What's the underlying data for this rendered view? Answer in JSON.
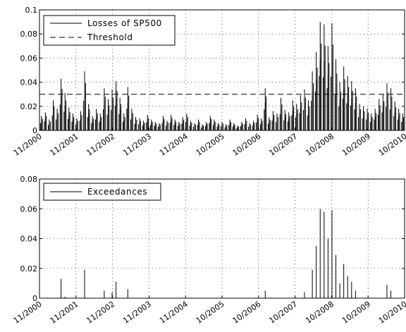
{
  "chart_data": [
    {
      "type": "bar",
      "ylim": [
        0,
        0.1
      ],
      "yticks": [
        0,
        0.02,
        0.04,
        0.06,
        0.08,
        0.1
      ],
      "ytick_labels": [
        "0",
        "0.02",
        "0.04",
        "0.06",
        "0.08",
        "0.1"
      ],
      "xtick_labels": [
        "11/2000",
        "11/2001",
        "11/2002",
        "11/2003",
        "11/2004",
        "10/2005",
        "10/2006",
        "10/2007",
        "10/2008",
        "10/2009",
        "10/2010"
      ],
      "grid": true,
      "legend_placement": "top-left",
      "series": [
        {
          "name": "Losses of SP500",
          "style": "solid",
          "color": "#000000",
          "values": [
            0.012,
            0.015,
            0.009,
            0.025,
            0.018,
            0.043,
            0.031,
            0.019,
            0.014,
            0.01,
            0.016,
            0.049,
            0.022,
            0.012,
            0.018,
            0.014,
            0.035,
            0.026,
            0.034,
            0.041,
            0.027,
            0.014,
            0.036,
            0.018,
            0.011,
            0.01,
            0.008,
            0.013,
            0.009,
            0.007,
            0.006,
            0.012,
            0.008,
            0.013,
            0.009,
            0.007,
            0.011,
            0.014,
            0.008,
            0.006,
            0.009,
            0.005,
            0.007,
            0.012,
            0.009,
            0.006,
            0.007,
            0.005,
            0.009,
            0.006,
            0.004,
            0.007,
            0.01,
            0.006,
            0.008,
            0.013,
            0.01,
            0.035,
            0.011,
            0.016,
            0.014,
            0.027,
            0.017,
            0.015,
            0.025,
            0.022,
            0.029,
            0.034,
            0.025,
            0.049,
            0.065,
            0.09,
            0.088,
            0.07,
            0.089,
            0.059,
            0.04,
            0.053,
            0.045,
            0.041,
            0.035,
            0.022,
            0.02,
            0.018,
            0.014,
            0.018,
            0.026,
            0.03,
            0.039,
            0.035,
            0.024,
            0.018,
            0.014
          ]
        },
        {
          "name": "Threshold",
          "style": "dashed",
          "color": "#000000",
          "values": [
            0.03
          ]
        }
      ]
    },
    {
      "type": "bar",
      "ylim": [
        0,
        0.08
      ],
      "yticks": [
        0,
        0.02,
        0.04,
        0.06,
        0.08
      ],
      "ytick_labels": [
        "0",
        "0.02",
        "0.04",
        "0.06",
        "0.08"
      ],
      "xtick_labels": [
        "11/2000",
        "11/2001",
        "11/2002",
        "11/2003",
        "11/2004",
        "10/2005",
        "10/2006",
        "10/2007",
        "10/2008",
        "10/2009",
        "10/2010"
      ],
      "grid": true,
      "legend_placement": "top-left",
      "series": [
        {
          "name": "Exceedances",
          "style": "solid",
          "color": "#000000",
          "values": [
            0,
            0,
            0,
            0,
            0,
            0.013,
            0.001,
            0,
            0,
            0,
            0,
            0.019,
            0,
            0,
            0,
            0,
            0.005,
            0,
            0.004,
            0.011,
            0,
            0,
            0.006,
            0,
            0,
            0,
            0,
            0,
            0,
            0,
            0,
            0,
            0,
            0,
            0,
            0,
            0,
            0,
            0,
            0,
            0,
            0,
            0,
            0,
            0,
            0,
            0,
            0,
            0,
            0,
            0,
            0,
            0,
            0,
            0,
            0,
            0,
            0.005,
            0,
            0,
            0,
            0,
            0,
            0,
            0,
            0,
            0,
            0.004,
            0,
            0.019,
            0.035,
            0.06,
            0.058,
            0.04,
            0.059,
            0.029,
            0.01,
            0.023,
            0.015,
            0.011,
            0.005,
            0,
            0,
            0,
            0,
            0,
            0,
            0,
            0.009,
            0.005,
            0,
            0,
            0
          ]
        }
      ]
    }
  ]
}
